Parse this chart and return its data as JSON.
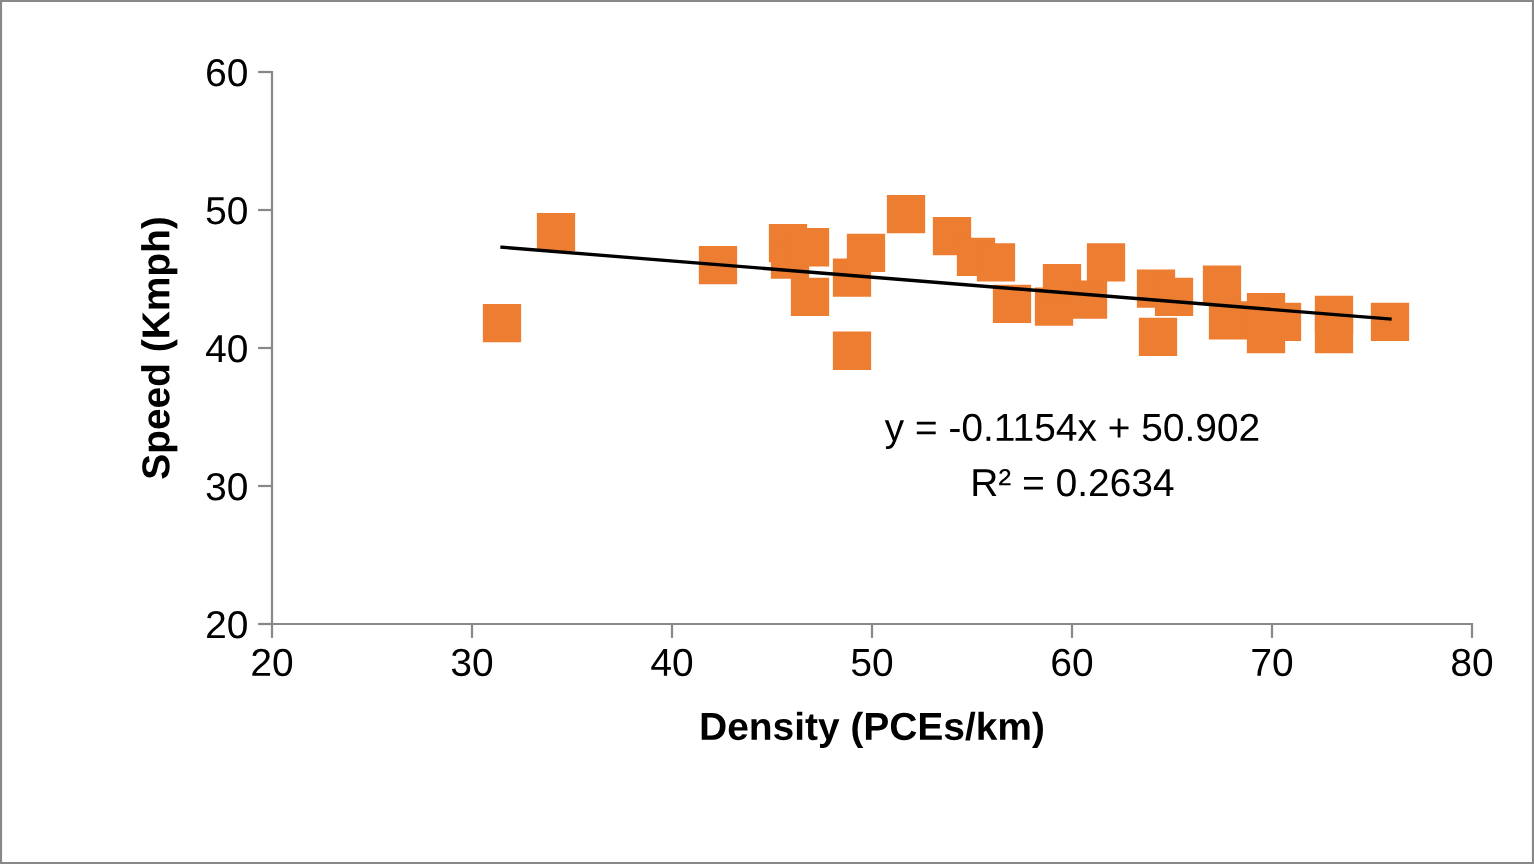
{
  "chart_data": {
    "type": "scatter",
    "xlabel": "Density (PCEs/km)",
    "ylabel": "Speed (Kmph)",
    "xlim": [
      20,
      80
    ],
    "xticks": [
      20,
      30,
      40,
      50,
      60,
      70,
      80
    ],
    "ylim": [
      20,
      60
    ],
    "yticks": [
      20,
      30,
      40,
      50,
      60
    ],
    "grid": false,
    "legend": false,
    "marker": "square",
    "series": [
      {
        "color": "#ed7d31",
        "x": [
          31.5,
          34.2,
          42.3,
          45.8,
          45.9,
          46.9,
          46.9,
          49.0,
          49.0,
          49.7,
          51.7,
          54.0,
          55.2,
          56.2,
          57.0,
          59.1,
          59.5,
          60.8,
          61.7,
          64.2,
          64.3,
          65.1,
          67.5,
          67.8,
          69.7,
          69.7,
          70.5,
          73.1,
          73.1,
          75.9
        ],
        "values": [
          41.8,
          48.4,
          46.0,
          47.6,
          46.4,
          47.3,
          43.7,
          45.1,
          39.8,
          46.9,
          49.7,
          48.1,
          46.6,
          46.2,
          43.2,
          43.0,
          44.7,
          43.5,
          46.2,
          44.3,
          40.8,
          43.7,
          44.6,
          42.0,
          42.6,
          41.0,
          41.9,
          42.4,
          41.0,
          41.9
        ]
      },
      {
        "type": "line",
        "color": "#000000",
        "marker": "none",
        "x": [
          31.5,
          75.9
        ],
        "values": [
          47.3,
          42.1
        ]
      }
    ],
    "annotations": [
      "y = -0.1154x + 50.902",
      "R² = 0.2634"
    ]
  }
}
